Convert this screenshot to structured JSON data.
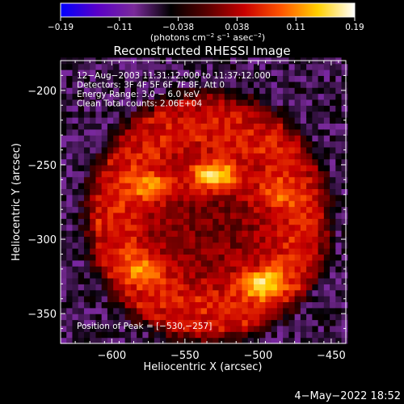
{
  "colorbar": {
    "ticks": [
      "−0.19",
      "−0.11",
      "−0.038",
      "0.038",
      "0.11",
      "0.19"
    ],
    "units_html": "(photons cm<tspan baseline-shift=\"super\" font-size=\"7\">−2</tspan> s<tspan baseline-shift=\"super\" font-size=\"7\">−1</tspan> asec<tspan baseline-shift=\"super\" font-size=\"7\">−2</tspan>)",
    "min": -0.19,
    "max": 0.19,
    "colors": [
      "#0000ff",
      "#5a00c8",
      "#7a2a9a",
      "#000000",
      "#5a0000",
      "#c80000",
      "#ff5500",
      "#ffd000",
      "#ffffff"
    ]
  },
  "chart_data": {
    "type": "heatmap",
    "title": "Reconstructed RHESSI Image",
    "xlabel": "Heliocentric X (arcsec)",
    "ylabel": "Heliocentric Y (arcsec)",
    "xlim": [
      -635,
      -440
    ],
    "ylim": [
      -370,
      -180
    ],
    "xticks": [
      -600,
      -550,
      -500,
      -450
    ],
    "xtick_labels": [
      "−600",
      "−550",
      "−500",
      "−450"
    ],
    "yticks": [
      -200,
      -250,
      -300,
      -350
    ],
    "ytick_labels": [
      "−200",
      "−250",
      "−300",
      "−350"
    ],
    "info_lines": [
      "12−Aug−2003 11:31:12.000 to 11:37:12.000",
      "Detectors: 3F 4F 5F 6F 7F 8F, Att 0",
      "Energy Range: 3.0 − 6.0 keV",
      "Clean    Total counts: 2.06E+04"
    ],
    "peak_label": "Position of Peak = [−530,−257]",
    "peak": [
      -530,
      -257
    ],
    "features": {
      "ring_center": [
        -534,
        -285
      ],
      "ring_radius_arcsec": 60,
      "bright_blobs": [
        {
          "x": -530,
          "y": -257,
          "value": 0.19
        },
        {
          "x": -570,
          "y": -265,
          "value": 0.13
        },
        {
          "x": -495,
          "y": -330,
          "value": 0.14
        },
        {
          "x": -580,
          "y": -320,
          "value": 0.1
        },
        {
          "x": -490,
          "y": -270,
          "value": 0.09
        }
      ]
    }
  },
  "footer_date": "4−May−2022 18:52"
}
